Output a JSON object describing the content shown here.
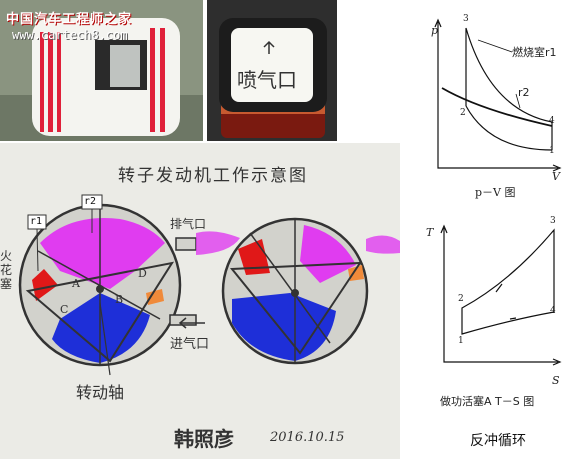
{
  "watermark": {
    "line1": "中国汽车工程师之家",
    "line2": "www.cartech8.com"
  },
  "photo_right": {
    "label": "喷气口"
  },
  "sketch": {
    "title": "转子发动机工作示意图",
    "r1": "r1",
    "r2": "r2",
    "spark_plug": "火花塞",
    "exhaust": "排气口",
    "intake": "进气口",
    "shaft": "转动轴",
    "chambers": [
      "A",
      "B",
      "C",
      "D"
    ],
    "signature": "韩照彦",
    "date": "2016.10.15"
  },
  "pv_diagram": {
    "axis_p": "p",
    "axis_v": "V",
    "points": [
      "1",
      "2",
      "3",
      "4"
    ],
    "label_combustion": "燃烧室r1",
    "label_r2": "r2",
    "caption": "p－V 图"
  },
  "ts_diagram": {
    "axis_t": "T",
    "axis_s": "S",
    "points": [
      "1",
      "2",
      "3",
      "4"
    ],
    "caption": "做功活塞A T－S 图"
  },
  "main_caption": "反冲循环",
  "colors": {
    "magenta": "#e03cf0",
    "blue": "#1e2fd8",
    "red": "#e01818",
    "orange": "#f08a3a",
    "gray": "#9a9a9a"
  }
}
